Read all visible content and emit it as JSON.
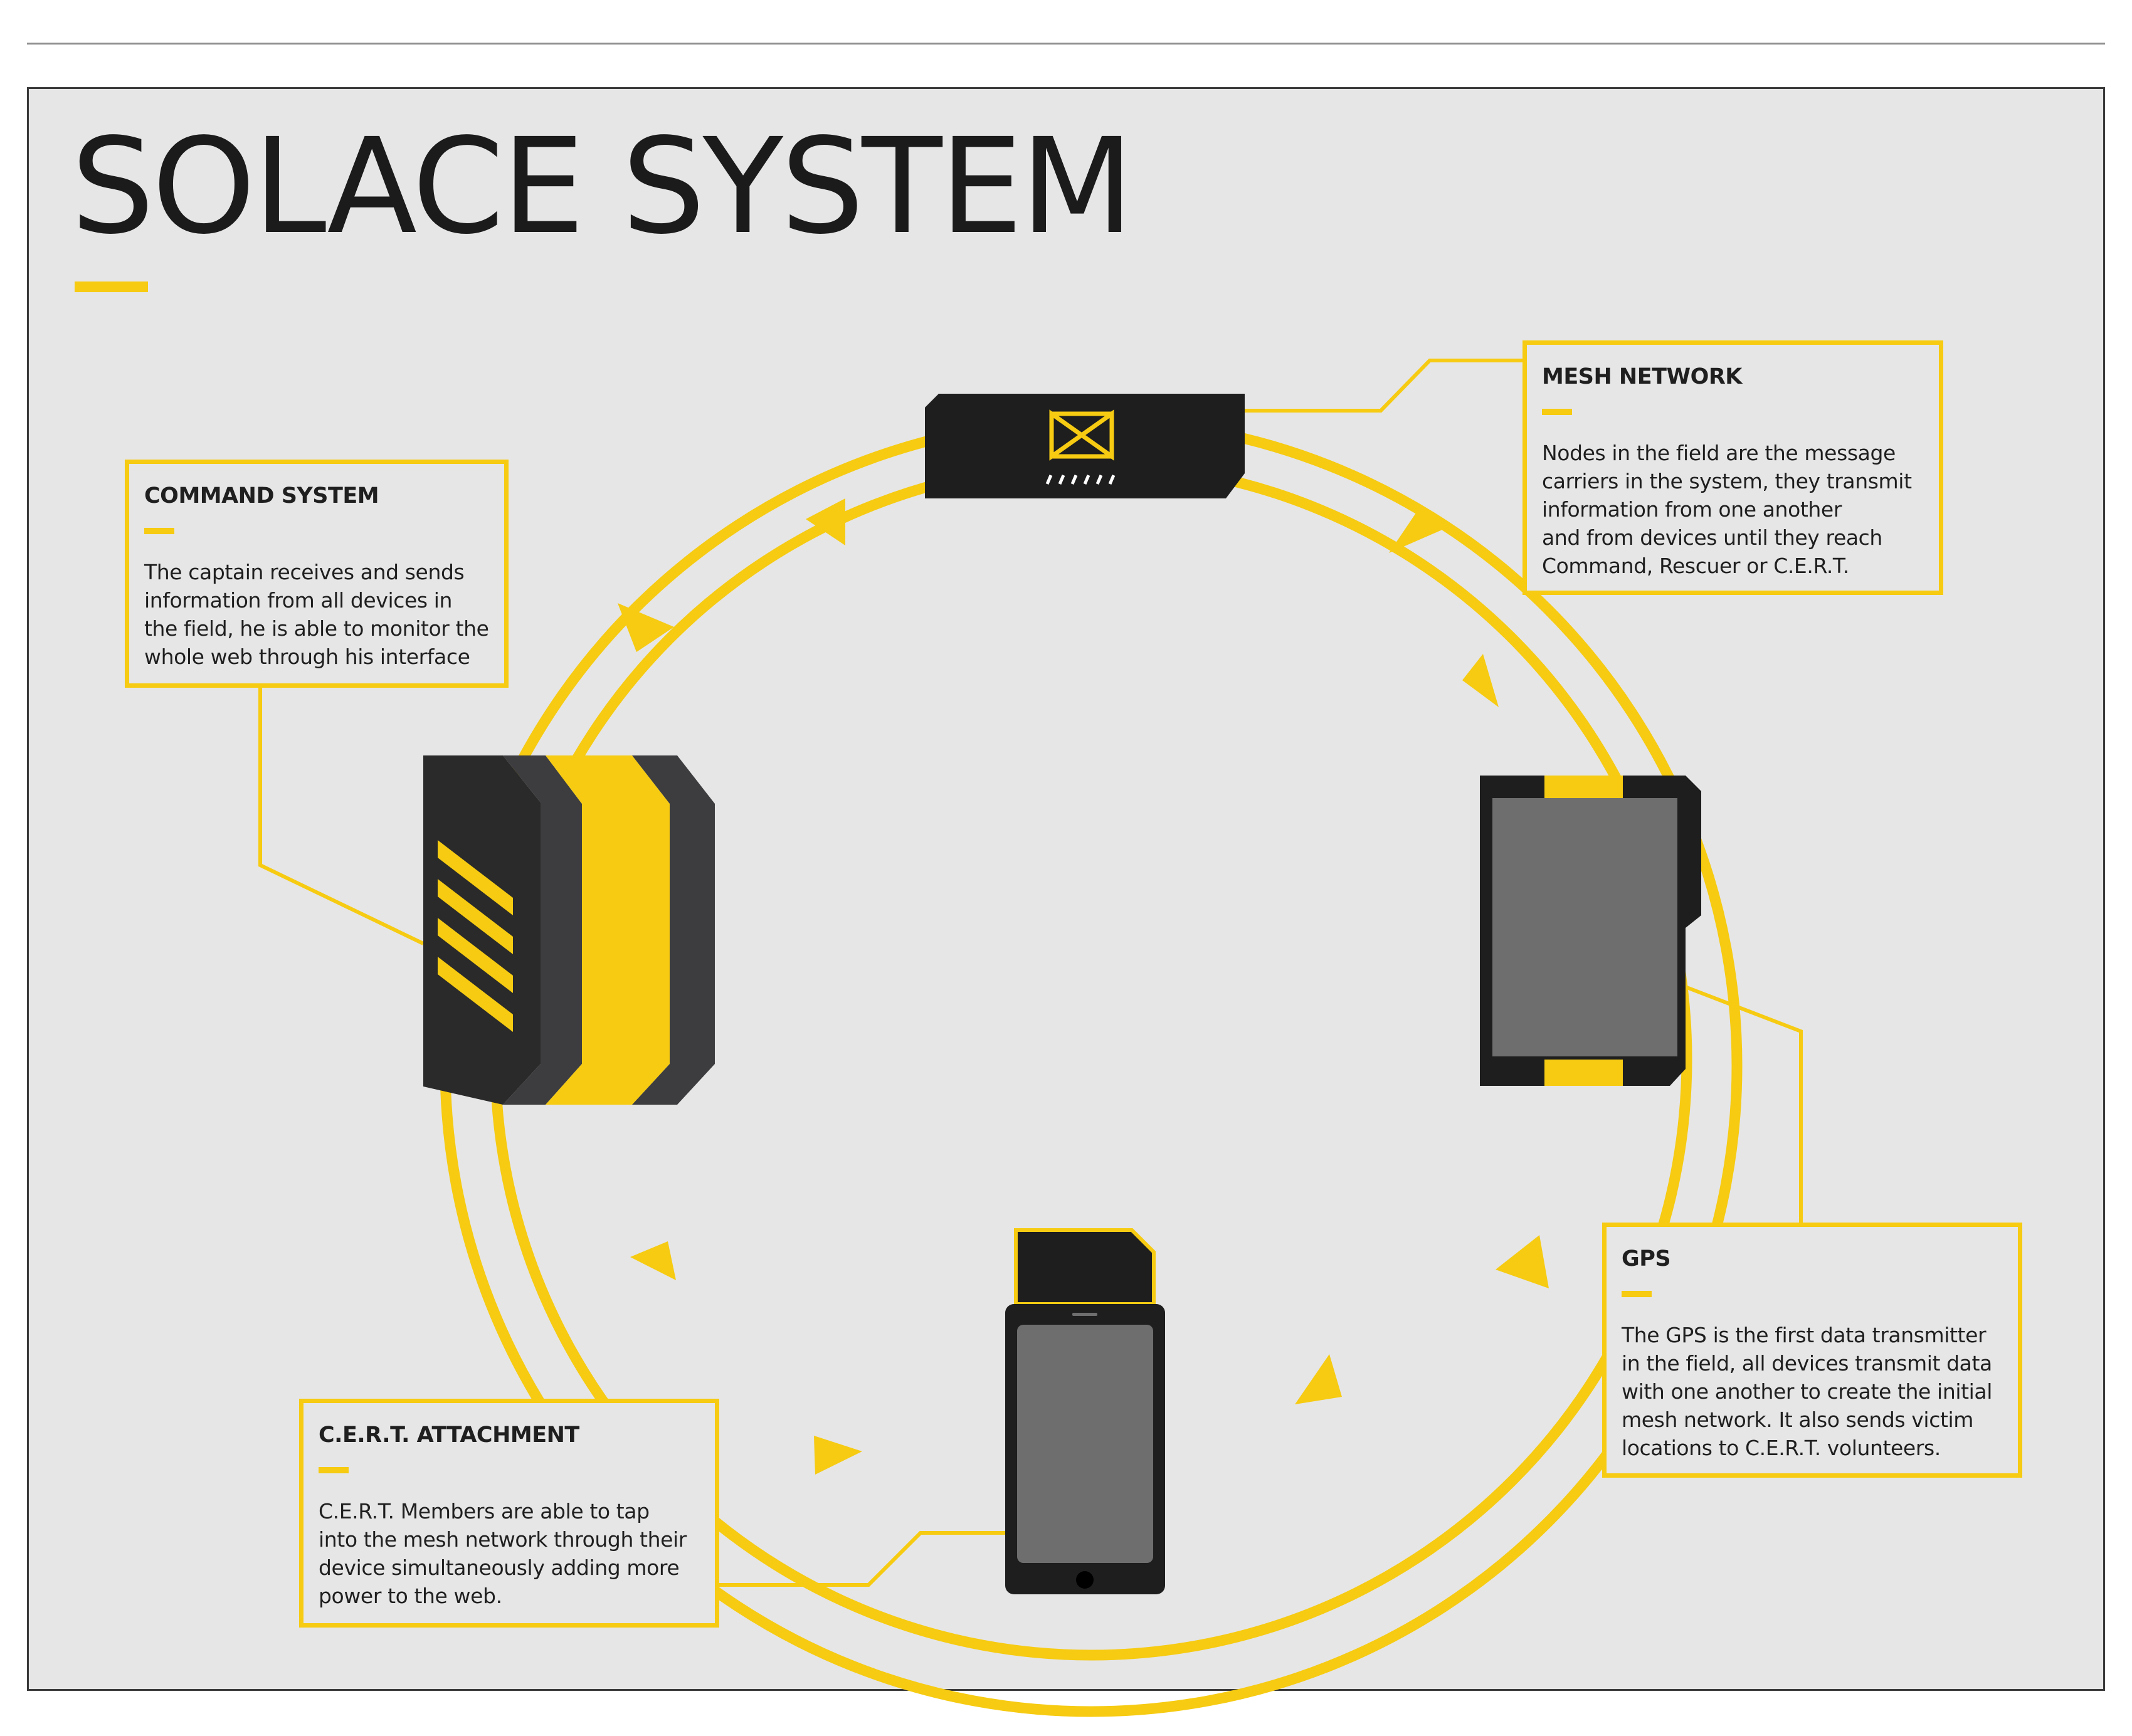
{
  "title": "SOLACE SYSTEM",
  "colors": {
    "accent": "#f6cb12",
    "panel_background": "#e6e6e6",
    "device_dark": "#1e1e1e",
    "device_mid": "#3d3d3f",
    "screen_gray": "#6e6e6e"
  },
  "callouts": {
    "command": {
      "heading": "COMMAND SYSTEM",
      "lines": [
        "The captain receives and sends",
        "information from all devices in",
        "the field, he is able to monitor the",
        "whole web through his interface"
      ]
    },
    "mesh": {
      "heading": "MESH NETWORK",
      "lines": [
        "Nodes in the field are the message",
        "carriers in the system, they transmit",
        "information from one another",
        "and from devices until they reach",
        "Command, Rescuer or C.E.R.T."
      ]
    },
    "gps": {
      "heading": "GPS",
      "lines": [
        "The GPS is the first data transmitter",
        "in the field, all devices transmit data",
        "with one another to create the initial",
        "mesh network. It also sends victim",
        "locations to C.E.R.T.  volunteers."
      ]
    },
    "cert": {
      "heading": "C.E.R.T. ATTACHMENT",
      "lines": [
        "C.E.R.T. Members are able to tap",
        "into the mesh network through their",
        "device simultaneously adding more",
        "power to the web."
      ]
    }
  },
  "devices": {
    "mesh_node": "mesh-node-device",
    "command_unit": "command-unit-device",
    "gps_unit": "gps-wrist-device",
    "cert_phone": "cert-phone-device"
  },
  "icons": {
    "mesh_logo": "bowtie-icon"
  }
}
